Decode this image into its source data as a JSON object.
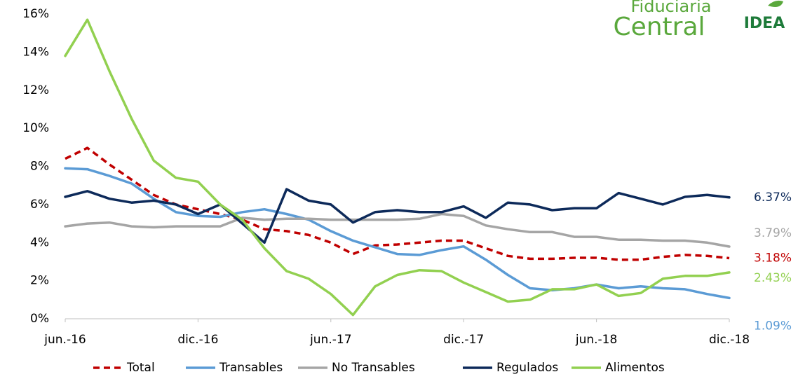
{
  "chart_data": {
    "type": "line",
    "categories": [
      "jun.-16",
      null,
      null,
      null,
      null,
      null,
      "dic.-16",
      null,
      null,
      null,
      null,
      null,
      "jun.-17",
      null,
      null,
      null,
      null,
      null,
      "dic.-17",
      null,
      null,
      null,
      null,
      null,
      "jun.-18",
      null,
      null,
      null,
      null,
      null,
      "dic.-18"
    ],
    "ylim": [
      0,
      16
    ],
    "yticks": [
      {
        "value": 0,
        "label": "0%"
      },
      {
        "value": 2,
        "label": "2%"
      },
      {
        "value": 4,
        "label": "4%"
      },
      {
        "value": 6,
        "label": "6%"
      },
      {
        "value": 8,
        "label": "8%"
      },
      {
        "value": 10,
        "label": "10%"
      },
      {
        "value": 12,
        "label": "12%"
      },
      {
        "value": 14,
        "label": "14%"
      },
      {
        "value": 16,
        "label": "16%"
      }
    ],
    "grid": false,
    "legend": "bottom",
    "series": [
      {
        "name": "Total",
        "color": "#c00000",
        "dash": true,
        "values": [
          8.4,
          8.97,
          8.1,
          7.3,
          6.5,
          6.0,
          5.75,
          5.5,
          5.2,
          4.7,
          4.6,
          4.4,
          4.0,
          3.4,
          3.85,
          3.9,
          4.0,
          4.1,
          4.1,
          3.7,
          3.3,
          3.15,
          3.15,
          3.2,
          3.2,
          3.1,
          3.1,
          3.25,
          3.35,
          3.3,
          3.18
        ],
        "value_labels": [
          null,
          null,
          null,
          null,
          null,
          null,
          null,
          null,
          null,
          null,
          null,
          null,
          null,
          null,
          null,
          null,
          null,
          null,
          null,
          null,
          null,
          null,
          null,
          null,
          null,
          null,
          null,
          null,
          null,
          null,
          "3.18%"
        ]
      },
      {
        "name": "Transables",
        "color": "#5b9bd5",
        "dash": false,
        "values": [
          7.9,
          7.85,
          7.5,
          7.1,
          6.3,
          5.6,
          5.4,
          5.35,
          5.6,
          5.75,
          5.5,
          5.2,
          4.6,
          4.1,
          3.75,
          3.4,
          3.35,
          3.6,
          3.8,
          3.1,
          2.3,
          1.6,
          1.5,
          1.6,
          1.8,
          1.6,
          1.7,
          1.6,
          1.55,
          1.3,
          1.09
        ],
        "value_labels": [
          null,
          null,
          null,
          null,
          null,
          null,
          null,
          null,
          null,
          null,
          null,
          null,
          null,
          null,
          null,
          null,
          null,
          null,
          null,
          null,
          null,
          null,
          null,
          null,
          null,
          null,
          null,
          null,
          null,
          null,
          "1.09%"
        ]
      },
      {
        "name": "No Transables",
        "color": "#a5a5a5",
        "dash": false,
        "values": [
          4.85,
          5.0,
          5.05,
          4.85,
          4.8,
          4.85,
          4.85,
          4.85,
          5.3,
          5.2,
          5.25,
          5.25,
          5.2,
          5.2,
          5.2,
          5.2,
          5.25,
          5.5,
          5.4,
          4.9,
          4.7,
          4.55,
          4.55,
          4.3,
          4.3,
          4.15,
          4.15,
          4.1,
          4.1,
          4.0,
          3.79
        ],
        "value_labels": [
          null,
          null,
          null,
          null,
          null,
          null,
          null,
          null,
          null,
          null,
          null,
          null,
          null,
          null,
          null,
          null,
          null,
          null,
          null,
          null,
          null,
          null,
          null,
          null,
          null,
          null,
          null,
          null,
          null,
          null,
          "3.79%"
        ]
      },
      {
        "name": "Regulados",
        "color": "#0d2a5a",
        "dash": false,
        "values": [
          6.4,
          6.7,
          6.3,
          6.1,
          6.2,
          6.0,
          5.5,
          6.0,
          5.0,
          4.0,
          6.8,
          6.2,
          6.0,
          5.05,
          5.6,
          5.7,
          5.6,
          5.6,
          5.9,
          5.3,
          6.1,
          6.0,
          5.7,
          5.8,
          5.8,
          6.6,
          6.3,
          6.0,
          6.4,
          6.5,
          6.37
        ],
        "value_labels": [
          null,
          null,
          null,
          null,
          null,
          null,
          null,
          null,
          null,
          null,
          null,
          null,
          null,
          null,
          null,
          null,
          null,
          null,
          null,
          null,
          null,
          null,
          null,
          null,
          null,
          null,
          null,
          null,
          null,
          null,
          "6.37%"
        ]
      },
      {
        "name": "Alimentos",
        "color": "#92d050",
        "dash": false,
        "values": [
          13.8,
          15.7,
          13.0,
          10.5,
          8.3,
          7.4,
          7.2,
          6.0,
          5.2,
          3.7,
          2.5,
          2.1,
          1.3,
          0.2,
          1.7,
          2.3,
          2.55,
          2.5,
          1.9,
          1.4,
          0.9,
          1.0,
          1.55,
          1.55,
          1.8,
          1.2,
          1.35,
          2.1,
          2.25,
          2.25,
          2.43
        ],
        "value_labels": [
          null,
          null,
          null,
          null,
          null,
          null,
          null,
          null,
          null,
          null,
          null,
          null,
          null,
          null,
          null,
          null,
          null,
          null,
          null,
          null,
          null,
          null,
          null,
          null,
          null,
          null,
          null,
          null,
          null,
          null,
          "2.43%"
        ]
      }
    ]
  },
  "logo": {
    "line1": "Fiduciaria",
    "line2": "Central",
    "badge": "IDEA"
  }
}
